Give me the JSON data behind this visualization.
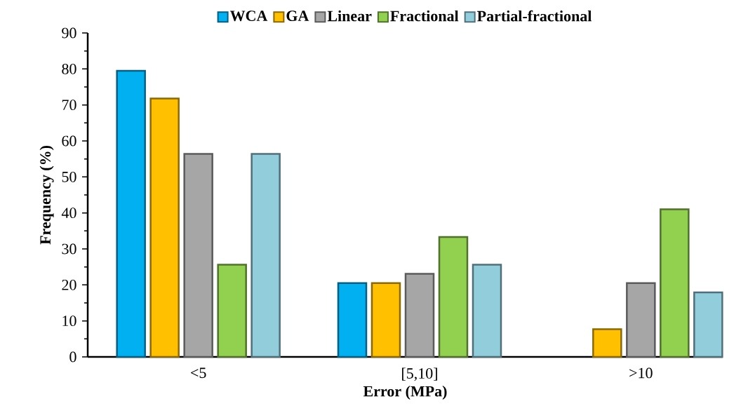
{
  "chart_data": {
    "type": "bar",
    "xlabel": "Error (MPa)",
    "ylabel": "Frequency (%)",
    "categories": [
      "<5",
      "[5,10]",
      ">10"
    ],
    "ylim": [
      0,
      90
    ],
    "yticks": [
      0,
      10,
      20,
      30,
      40,
      50,
      60,
      70,
      80,
      90
    ],
    "legend": "top",
    "series": [
      {
        "name": "WCA",
        "color": "#00b0f0",
        "values": [
          79.5,
          20.5,
          0
        ]
      },
      {
        "name": "GA",
        "color": "#ffc000",
        "values": [
          71.8,
          20.5,
          7.7
        ]
      },
      {
        "name": "Linear",
        "color": "#a6a6a6",
        "values": [
          56.4,
          23.1,
          20.5
        ]
      },
      {
        "name": "Fractional",
        "color": "#92d050",
        "values": [
          25.6,
          33.3,
          41.0
        ]
      },
      {
        "name": "Partial-fractional",
        "color": "#92cddc",
        "values": [
          56.4,
          25.6,
          17.9
        ]
      }
    ]
  }
}
